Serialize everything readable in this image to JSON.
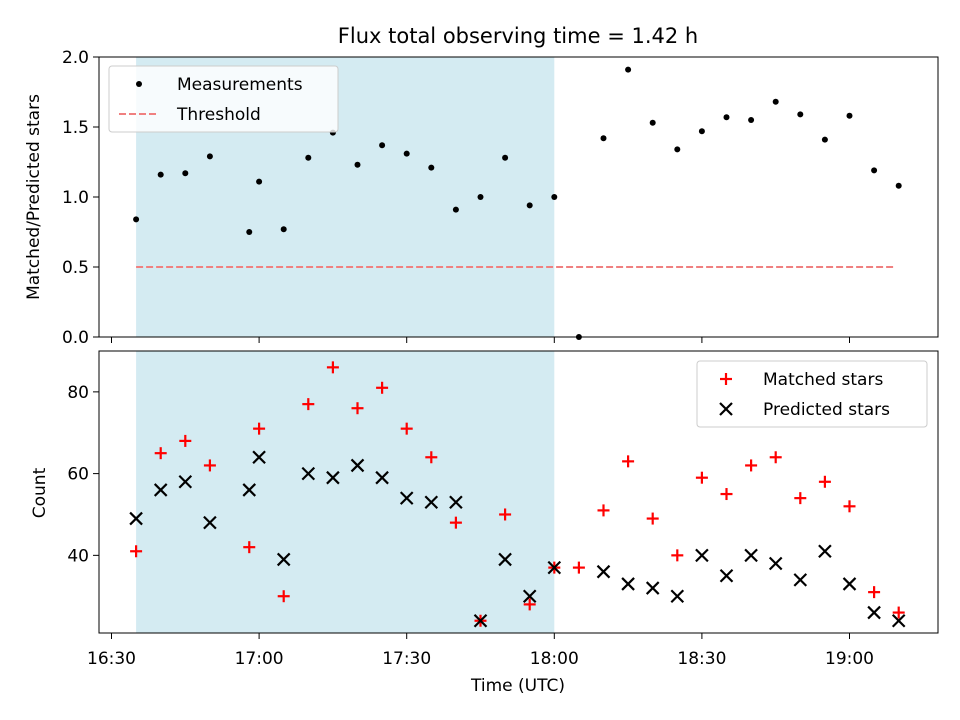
{
  "chart_data": [
    {
      "type": "scatter",
      "title": "Flux total observing time = 1.42 h",
      "xlabel": "",
      "ylabel": "Matched/Predicted stars",
      "ylim": [
        0,
        2.0
      ],
      "yticks": [
        "0.0",
        "0.5",
        "1.0",
        "1.5",
        "2.0"
      ],
      "shaded_region": {
        "x_start": "16:35",
        "x_end": "18:00",
        "color": "#add8e6"
      },
      "legend_position": "upper-left",
      "series": [
        {
          "name": "Measurements",
          "color": "#000000",
          "marker": "dot",
          "x": [
            "16:35",
            "16:40",
            "16:45",
            "16:50",
            "16:58",
            "17:00",
            "17:05",
            "17:10",
            "17:15",
            "17:20",
            "17:25",
            "17:30",
            "17:35",
            "17:40",
            "17:45",
            "17:50",
            "17:55",
            "18:00",
            "18:05",
            "18:10",
            "18:15",
            "18:20",
            "18:25",
            "18:30",
            "18:35",
            "18:40",
            "18:45",
            "18:50",
            "18:55",
            "19:00",
            "19:05",
            "19:10"
          ],
          "values": [
            0.84,
            1.16,
            1.17,
            1.29,
            0.75,
            1.11,
            0.77,
            1.28,
            1.46,
            1.23,
            1.37,
            1.31,
            1.21,
            0.91,
            1.0,
            1.28,
            0.94,
            1.0,
            0.0,
            1.42,
            1.91,
            1.53,
            1.34,
            1.47,
            1.57,
            1.55,
            1.68,
            1.59,
            1.41,
            1.58,
            1.19,
            1.08
          ]
        },
        {
          "name": "Threshold",
          "color": "#f08080",
          "style": "dashed",
          "x": [
            "16:35",
            "19:09"
          ],
          "values": [
            0.5,
            0.5
          ]
        }
      ]
    },
    {
      "type": "scatter",
      "title": "",
      "xlabel": "Time (UTC)",
      "ylabel": "Count",
      "ylim": [
        21,
        90
      ],
      "yticks": [
        "40",
        "60",
        "80"
      ],
      "xticks": [
        "16:30",
        "17:00",
        "17:30",
        "18:00",
        "18:30",
        "19:00"
      ],
      "shaded_region": {
        "x_start": "16:35",
        "x_end": "18:00",
        "color": "#add8e6"
      },
      "legend_position": "upper-right",
      "series": [
        {
          "name": "Matched stars",
          "color": "#ff0000",
          "marker": "plus",
          "x": [
            "16:35",
            "16:40",
            "16:45",
            "16:50",
            "16:58",
            "17:00",
            "17:05",
            "17:10",
            "17:15",
            "17:20",
            "17:25",
            "17:30",
            "17:35",
            "17:40",
            "17:45",
            "17:50",
            "17:55",
            "18:00",
            "18:05",
            "18:10",
            "18:15",
            "18:20",
            "18:25",
            "18:30",
            "18:35",
            "18:40",
            "18:45",
            "18:50",
            "18:55",
            "19:00",
            "19:05",
            "19:10"
          ],
          "values": [
            41,
            65,
            68,
            62,
            42,
            71,
            30,
            77,
            86,
            76,
            81,
            71,
            64,
            48,
            24,
            50,
            28,
            37,
            37,
            51,
            63,
            49,
            40,
            59,
            55,
            62,
            64,
            54,
            58,
            52,
            31,
            26
          ]
        },
        {
          "name": "Predicted stars",
          "color": "#000000",
          "marker": "x",
          "x": [
            "16:35",
            "16:40",
            "16:45",
            "16:50",
            "16:58",
            "17:00",
            "17:05",
            "17:10",
            "17:15",
            "17:20",
            "17:25",
            "17:30",
            "17:35",
            "17:40",
            "17:45",
            "17:50",
            "17:55",
            "18:00",
            "18:10",
            "18:15",
            "18:20",
            "18:25",
            "18:30",
            "18:35",
            "18:40",
            "18:45",
            "18:50",
            "18:55",
            "19:00",
            "19:05",
            "19:10"
          ],
          "values": [
            49,
            56,
            58,
            48,
            56,
            64,
            39,
            60,
            59,
            62,
            59,
            54,
            53,
            53,
            24,
            39,
            30,
            37,
            36,
            33,
            32,
            30,
            40,
            35,
            40,
            38,
            34,
            41,
            33,
            26,
            24
          ]
        }
      ]
    }
  ]
}
